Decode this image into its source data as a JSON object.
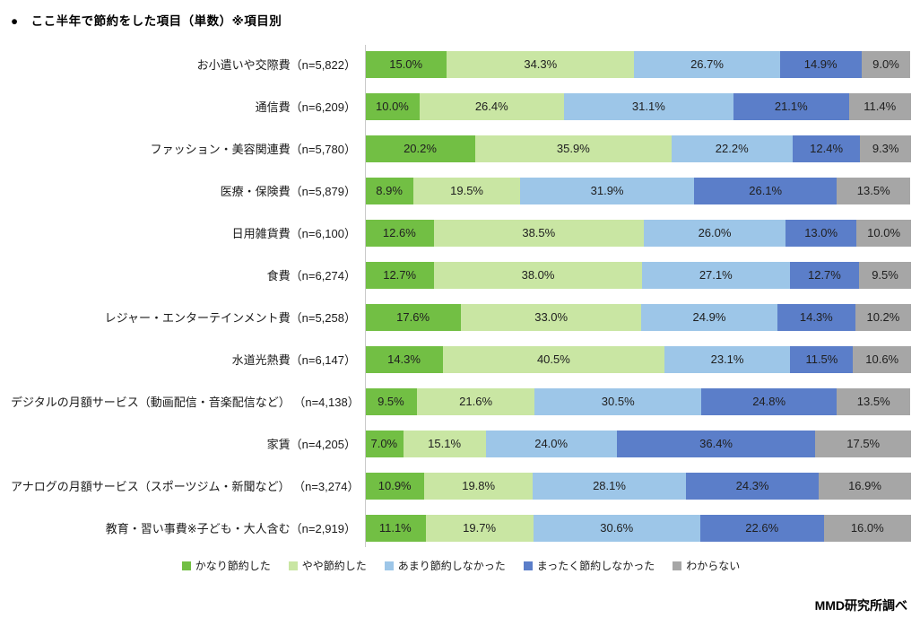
{
  "title": "●　ここ半年で節約をした項目（単数）※項目別",
  "footer": "MMD研究所調べ",
  "chart_data": {
    "type": "bar",
    "stacked": true,
    "orientation": "horizontal",
    "unit": "%",
    "xlim": [
      0,
      100
    ],
    "legend_position": "bottom",
    "grid": false,
    "categories": [
      "お小遣いや交際費（n=5,822）",
      "通信費（n=6,209）",
      "ファッション・美容関連費（n=5,780）",
      "医療・保険費（n=5,879）",
      "日用雑貨費（n=6,100）",
      "食費（n=6,274）",
      "レジャー・エンターテインメント費（n=5,258）",
      "水道光熱費（n=6,147）",
      "デジタルの月額サービス（動画配信・音楽配信など） （n=4,138）",
      "家賃（n=4,205）",
      "アナログの月額サービス（スポーツジム・新聞など） （n=3,274）",
      "教育・習い事費※子ども・大人含む（n=2,919）"
    ],
    "series": [
      {
        "id": "saved-a-lot",
        "name": "かなり節約した",
        "color": "#72bf44",
        "values": [
          15.0,
          10.0,
          20.2,
          8.9,
          12.6,
          12.7,
          17.6,
          14.3,
          9.5,
          7.0,
          10.9,
          11.1
        ]
      },
      {
        "id": "saved-somewhat",
        "name": "やや節約した",
        "color": "#c9e6a3",
        "values": [
          34.3,
          26.4,
          35.9,
          19.5,
          38.5,
          38.0,
          33.0,
          40.5,
          21.6,
          15.1,
          19.8,
          19.7
        ]
      },
      {
        "id": "did-not-save-much",
        "name": "あまり節約しなかった",
        "color": "#9dc6e8",
        "values": [
          26.7,
          31.1,
          22.2,
          31.9,
          26.0,
          27.1,
          24.9,
          23.1,
          30.5,
          24.0,
          28.1,
          30.6
        ]
      },
      {
        "id": "did-not-save-at-all",
        "name": "まったく節約しなかった",
        "color": "#5b7ec9",
        "values": [
          14.9,
          21.1,
          12.4,
          26.1,
          13.0,
          12.7,
          14.3,
          11.5,
          24.8,
          36.4,
          24.3,
          22.6
        ]
      },
      {
        "id": "dont-know",
        "name": "わからない",
        "color": "#a6a6a6",
        "values": [
          9.0,
          11.4,
          9.3,
          13.5,
          10.0,
          9.5,
          10.2,
          10.6,
          13.5,
          17.5,
          16.9,
          16.0
        ]
      }
    ]
  }
}
